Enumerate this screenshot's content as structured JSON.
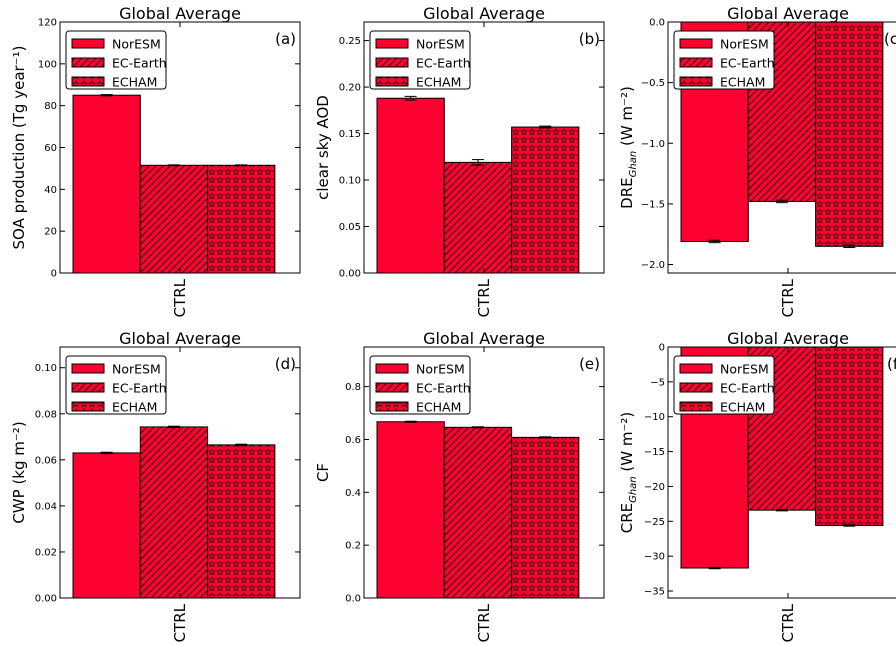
{
  "colors": {
    "bar_fill": "#ff0030",
    "edge": "#000000",
    "background": "#ffffff"
  },
  "legend": {
    "entries": [
      "NorESM",
      "EC-Earth",
      "ECHAM"
    ],
    "placement": "top-left"
  },
  "chart_data": [
    {
      "type": "bar",
      "title": "Global Average",
      "panel": "(a)",
      "ylabel": "SOA production (Tg year⁻¹)",
      "categories": [
        "CTRL"
      ],
      "ylim": [
        0,
        120
      ],
      "yticks": [
        0,
        20,
        40,
        60,
        80,
        100,
        120
      ],
      "ytick_labels": [
        "0",
        "20",
        "40",
        "60",
        "80",
        "100",
        "120"
      ],
      "series": [
        {
          "name": "NorESM",
          "values": [
            85
          ],
          "errors": [
            0.3
          ]
        },
        {
          "name": "EC-Earth",
          "values": [
            51.5
          ],
          "errors": [
            0.2
          ]
        },
        {
          "name": "ECHAM",
          "values": [
            51.5
          ],
          "errors": [
            0.2
          ]
        }
      ]
    },
    {
      "type": "bar",
      "title": "Global Average",
      "panel": "(b)",
      "ylabel": "clear sky AOD",
      "categories": [
        "CTRL"
      ],
      "ylim": [
        0,
        0.27
      ],
      "yticks": [
        0,
        0.05,
        0.1,
        0.15,
        0.2,
        0.25
      ],
      "ytick_labels": [
        "0.00",
        "0.05",
        "0.10",
        "0.15",
        "0.20",
        "0.25"
      ],
      "series": [
        {
          "name": "NorESM",
          "values": [
            0.188
          ],
          "errors": [
            0.002
          ]
        },
        {
          "name": "EC-Earth",
          "values": [
            0.119
          ],
          "errors": [
            0.003
          ]
        },
        {
          "name": "ECHAM",
          "values": [
            0.157
          ],
          "errors": [
            0.001
          ]
        }
      ]
    },
    {
      "type": "bar",
      "title": "Global Average",
      "panel": "(c)",
      "ylabel": "DRE",
      "ylabel_sub": "Ghan",
      "ylabel_unit": " (W m⁻²)",
      "categories": [
        "CTRL"
      ],
      "ylim": [
        -2.07,
        0
      ],
      "yticks": [
        0,
        -0.5,
        -1,
        -1.5,
        -2
      ],
      "ytick_labels": [
        "0.0",
        "−0.5",
        "−1.0",
        "−1.5",
        "−2.0"
      ],
      "series": [
        {
          "name": "NorESM",
          "values": [
            -1.81
          ],
          "errors": [
            0.01
          ]
        },
        {
          "name": "EC-Earth",
          "values": [
            -1.48
          ],
          "errors": [
            0.01
          ]
        },
        {
          "name": "ECHAM",
          "values": [
            -1.85
          ],
          "errors": [
            0.01
          ]
        }
      ]
    },
    {
      "type": "bar",
      "title": "Global Average",
      "panel": "(d)",
      "ylabel": "CWP (kg m⁻²)",
      "categories": [
        "CTRL"
      ],
      "ylim": [
        0,
        0.109
      ],
      "yticks": [
        0,
        0.02,
        0.04,
        0.06,
        0.08,
        0.1
      ],
      "ytick_labels": [
        "0.00",
        "0.02",
        "0.04",
        "0.06",
        "0.08",
        "0.10"
      ],
      "series": [
        {
          "name": "NorESM",
          "values": [
            0.063
          ],
          "errors": [
            0.0003
          ]
        },
        {
          "name": "EC-Earth",
          "values": [
            0.0743
          ],
          "errors": [
            0.0003
          ]
        },
        {
          "name": "ECHAM",
          "values": [
            0.0665
          ],
          "errors": [
            0.0003
          ]
        }
      ]
    },
    {
      "type": "bar",
      "title": "Global Average",
      "panel": "(e)",
      "ylabel": "CF",
      "categories": [
        "CTRL"
      ],
      "ylim": [
        0,
        0.95
      ],
      "yticks": [
        0,
        0.2,
        0.4,
        0.6,
        0.8
      ],
      "ytick_labels": [
        "0.0",
        "0.2",
        "0.4",
        "0.6",
        "0.8"
      ],
      "series": [
        {
          "name": "NorESM",
          "values": [
            0.667
          ],
          "errors": [
            0.002
          ]
        },
        {
          "name": "EC-Earth",
          "values": [
            0.646
          ],
          "errors": [
            0.002
          ]
        },
        {
          "name": "ECHAM",
          "values": [
            0.608
          ],
          "errors": [
            0.002
          ]
        }
      ]
    },
    {
      "type": "bar",
      "title": "Global Average",
      "panel": "(f)",
      "ylabel": "CRE",
      "ylabel_sub": "Ghan",
      "ylabel_unit": " (W m⁻²)",
      "categories": [
        "CTRL"
      ],
      "ylim": [
        -36,
        0
      ],
      "yticks": [
        0,
        -5,
        -10,
        -15,
        -20,
        -25,
        -30,
        -35
      ],
      "ytick_labels": [
        "0",
        "−5",
        "−10",
        "−15",
        "−20",
        "−25",
        "−30",
        "−35"
      ],
      "series": [
        {
          "name": "NorESM",
          "values": [
            -31.7
          ],
          "errors": [
            0.1
          ]
        },
        {
          "name": "EC-Earth",
          "values": [
            -23.4
          ],
          "errors": [
            0.1
          ]
        },
        {
          "name": "ECHAM",
          "values": [
            -25.6
          ],
          "errors": [
            0.1
          ]
        }
      ]
    }
  ]
}
